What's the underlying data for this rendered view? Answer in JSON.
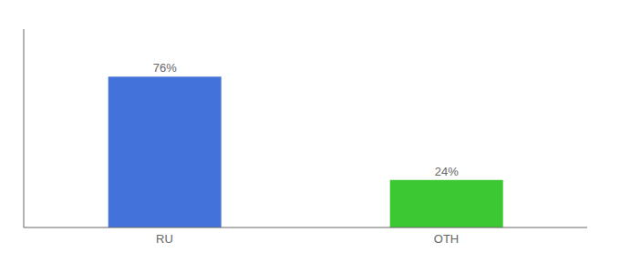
{
  "chart_data": {
    "type": "bar",
    "categories": [
      "RU",
      "OTH"
    ],
    "values": [
      76,
      24
    ],
    "value_labels": [
      "76%",
      "24%"
    ],
    "colors": [
      "#4472db",
      "#3cc832"
    ],
    "ylim": [
      0,
      100
    ],
    "tick_labels": "x",
    "data_labels": true,
    "grid": false
  }
}
